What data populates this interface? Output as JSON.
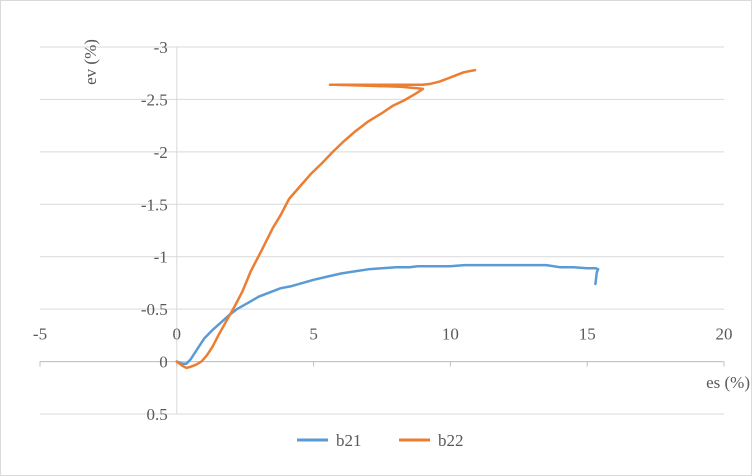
{
  "chart_data": {
    "type": "line",
    "title": "",
    "xlabel": "es (%)",
    "ylabel": "ev (%)",
    "xlim": [
      -5,
      20
    ],
    "ylim": [
      -3,
      0.5
    ],
    "y_reversed": true,
    "x_ticks": [
      -5,
      0,
      5,
      10,
      15,
      20
    ],
    "y_ticks": [
      -3,
      -2.5,
      -2,
      -1.5,
      -1,
      -0.5,
      0,
      0.5
    ],
    "x_tick_labels": [
      "-5",
      "0",
      "5",
      "10",
      "15",
      "20"
    ],
    "y_tick_labels": [
      "-3",
      "-2.5",
      "-2",
      "-1.5",
      "-1",
      "-0.5",
      "0",
      "0.5"
    ],
    "grid": "horizontal",
    "legend_position": "bottom",
    "series": [
      {
        "name": "b21",
        "color": "#5b9bd5",
        "points": [
          [
            0,
            0
          ],
          [
            0.2,
            0.02
          ],
          [
            0.35,
            0.02
          ],
          [
            0.5,
            -0.02
          ],
          [
            0.7,
            -0.1
          ],
          [
            1.0,
            -0.22
          ],
          [
            1.3,
            -0.3
          ],
          [
            1.6,
            -0.37
          ],
          [
            1.9,
            -0.44
          ],
          [
            2.2,
            -0.5
          ],
          [
            2.6,
            -0.56
          ],
          [
            3.0,
            -0.62
          ],
          [
            3.5,
            -0.67
          ],
          [
            3.8,
            -0.7
          ],
          [
            4.2,
            -0.72
          ],
          [
            4.6,
            -0.75
          ],
          [
            5.0,
            -0.78
          ],
          [
            5.5,
            -0.81
          ],
          [
            6.0,
            -0.84
          ],
          [
            6.5,
            -0.86
          ],
          [
            7.0,
            -0.88
          ],
          [
            7.5,
            -0.89
          ],
          [
            8.0,
            -0.9
          ],
          [
            8.5,
            -0.9
          ],
          [
            8.8,
            -0.91
          ],
          [
            9.0,
            -0.91
          ],
          [
            9.5,
            -0.91
          ],
          [
            10.0,
            -0.91
          ],
          [
            10.5,
            -0.92
          ],
          [
            11.0,
            -0.92
          ],
          [
            12.0,
            -0.92
          ],
          [
            12.5,
            -0.92
          ],
          [
            13.0,
            -0.92
          ],
          [
            13.5,
            -0.92
          ],
          [
            14.0,
            -0.9
          ],
          [
            14.5,
            -0.9
          ],
          [
            15.0,
            -0.89
          ],
          [
            15.3,
            -0.89
          ],
          [
            15.4,
            -0.88
          ],
          [
            15.35,
            -0.85
          ],
          [
            15.3,
            -0.74
          ]
        ]
      },
      {
        "name": "b22",
        "color": "#ed7d31",
        "points": [
          [
            0,
            0
          ],
          [
            0.2,
            0.04
          ],
          [
            0.35,
            0.06
          ],
          [
            0.5,
            0.05
          ],
          [
            0.7,
            0.03
          ],
          [
            0.9,
            0.0
          ],
          [
            1.1,
            -0.06
          ],
          [
            1.3,
            -0.14
          ],
          [
            1.5,
            -0.24
          ],
          [
            1.8,
            -0.38
          ],
          [
            2.1,
            -0.52
          ],
          [
            2.4,
            -0.67
          ],
          [
            2.7,
            -0.86
          ],
          [
            3.1,
            -1.06
          ],
          [
            3.5,
            -1.27
          ],
          [
            3.8,
            -1.4
          ],
          [
            4.1,
            -1.55
          ],
          [
            4.5,
            -1.67
          ],
          [
            4.9,
            -1.79
          ],
          [
            5.3,
            -1.89
          ],
          [
            5.7,
            -2.0
          ],
          [
            6.1,
            -2.1
          ],
          [
            6.5,
            -2.19
          ],
          [
            7.0,
            -2.29
          ],
          [
            7.5,
            -2.37
          ],
          [
            7.9,
            -2.44
          ],
          [
            8.3,
            -2.49
          ],
          [
            8.7,
            -2.55
          ],
          [
            9.0,
            -2.6
          ],
          [
            8.2,
            -2.62
          ],
          [
            7.0,
            -2.63
          ],
          [
            5.8,
            -2.64
          ],
          [
            5.6,
            -2.64
          ],
          [
            6.4,
            -2.64
          ],
          [
            7.6,
            -2.64
          ],
          [
            9.0,
            -2.64
          ],
          [
            9.3,
            -2.65
          ],
          [
            9.6,
            -2.67
          ],
          [
            9.9,
            -2.7
          ],
          [
            10.2,
            -2.73
          ],
          [
            10.5,
            -2.76
          ],
          [
            10.9,
            -2.78
          ]
        ]
      }
    ]
  }
}
